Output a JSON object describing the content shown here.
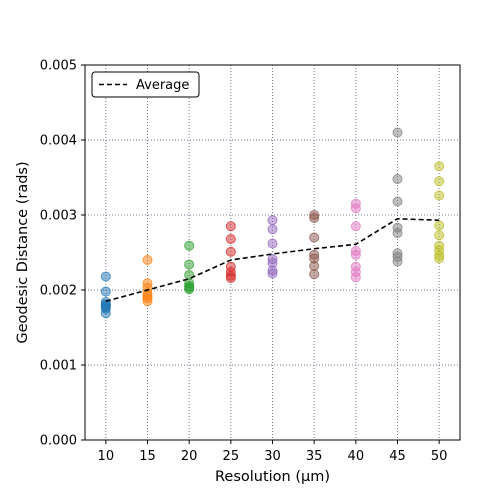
{
  "chart_data": {
    "type": "scatter",
    "xlabel": "Resolution (µm)",
    "ylabel": "Geodesic Distance (rads)",
    "xticks": [
      10,
      15,
      20,
      25,
      30,
      35,
      40,
      45,
      50
    ],
    "yticks": [
      "0.000",
      "0.001",
      "0.002",
      "0.003",
      "0.004",
      "0.005"
    ],
    "xlim": [
      7.5,
      52.5
    ],
    "ylim": [
      0,
      0.005
    ],
    "grid": true,
    "legend": {
      "placement": "top-left",
      "entries": [
        "Average"
      ]
    },
    "colors": [
      "#1f77b4",
      "#ff7f0e",
      "#2ca02c",
      "#d62728",
      "#9467bd",
      "#8c564b",
      "#e377c2",
      "#7f7f7f",
      "#bcbd22"
    ],
    "scatter_series": [
      {
        "x": 10,
        "values": [
          0.00218,
          0.00198,
          0.00184,
          0.00181,
          0.00179,
          0.00177,
          0.00175,
          0.00169
        ]
      },
      {
        "x": 15,
        "values": [
          0.0024,
          0.00209,
          0.00203,
          0.00196,
          0.00192,
          0.00189,
          0.00185
        ]
      },
      {
        "x": 20,
        "values": [
          0.00259,
          0.00234,
          0.0022,
          0.00209,
          0.00205,
          0.00203,
          0.00201
        ]
      },
      {
        "x": 25,
        "values": [
          0.00285,
          0.00268,
          0.00251,
          0.00231,
          0.00224,
          0.00219,
          0.00216
        ]
      },
      {
        "x": 30,
        "values": [
          0.00293,
          0.00281,
          0.00262,
          0.00241,
          0.00236,
          0.00226,
          0.00222
        ]
      },
      {
        "x": 35,
        "values": [
          0.003,
          0.00296,
          0.0027,
          0.00247,
          0.00242,
          0.00232,
          0.00221
        ]
      },
      {
        "x": 40,
        "values": [
          0.00315,
          0.00309,
          0.00285,
          0.00252,
          0.00247,
          0.00231,
          0.00224,
          0.00217
        ]
      },
      {
        "x": 45,
        "values": [
          0.0041,
          0.00348,
          0.00318,
          0.00283,
          0.00276,
          0.00249,
          0.00244,
          0.00238
        ]
      },
      {
        "x": 50,
        "values": [
          0.00365,
          0.00345,
          0.00326,
          0.00286,
          0.00273,
          0.00259,
          0.00253,
          0.00246,
          0.00242
        ]
      }
    ],
    "average": {
      "name": "Average",
      "x": [
        10,
        15,
        20,
        25,
        30,
        35,
        40,
        45,
        50
      ],
      "y": [
        0.00185,
        0.002,
        0.00215,
        0.0024,
        0.00248,
        0.00255,
        0.00261,
        0.00295,
        0.00293
      ]
    }
  }
}
